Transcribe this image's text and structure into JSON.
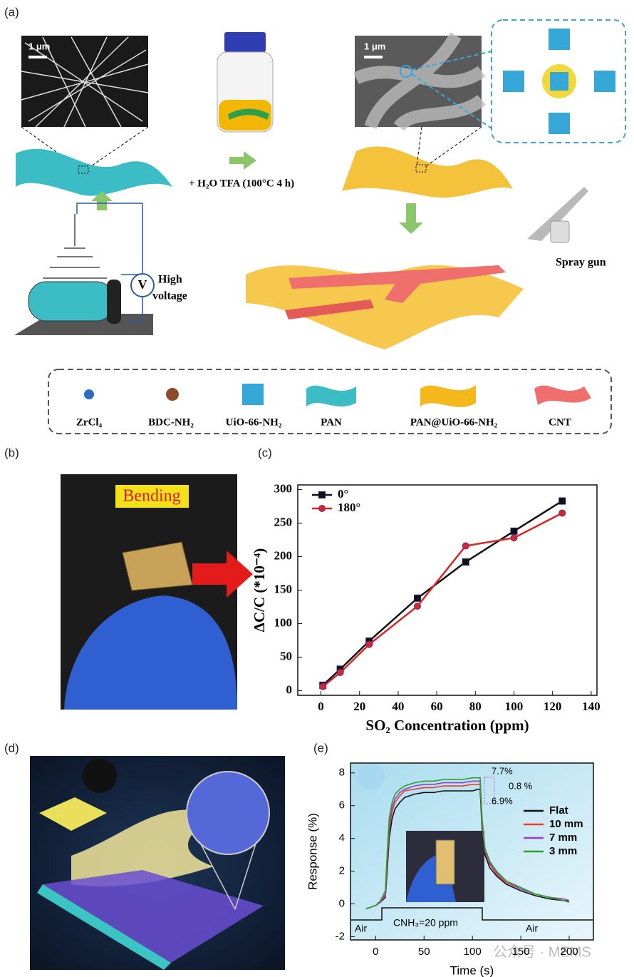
{
  "panel_labels": [
    "(a)",
    "(b)",
    "(c)",
    "(d)",
    "(e)"
  ],
  "panel_a": {
    "scale_bars": [
      "1 μm",
      "1 μm"
    ],
    "reaction": "+ H₂O  TFA (100°C  4 h)",
    "voltmeter": "V",
    "voltage_label": [
      "High",
      "voltage"
    ],
    "spray_label": "Spray gun",
    "legend": [
      "ZrCl₄",
      "BDC-NH₂",
      "UiO-66-NH₂",
      "PAN",
      "PAN@UiO-66-NH₂",
      "CNT"
    ]
  },
  "panel_b": {
    "label": "Bending"
  },
  "chart_data": [
    {
      "type": "line",
      "xlabel": "SO₂ Concentration (ppm)",
      "ylabel": "ΔC/C (*10⁻⁴)",
      "x": [
        1,
        10,
        25,
        50,
        75,
        100,
        125
      ],
      "series": [
        {
          "name": "0°",
          "color": "#111111",
          "marker": "square",
          "values": [
            8,
            32,
            74,
            138,
            192,
            238,
            283
          ]
        },
        {
          "name": "180°",
          "color": "#d62728",
          "marker": "circle",
          "values": [
            6,
            27,
            69,
            126,
            216,
            228,
            265
          ]
        }
      ],
      "xlim": [
        -12,
        143
      ],
      "ylim": [
        -7,
        307
      ],
      "xticks": [
        0,
        20,
        40,
        60,
        80,
        100,
        120,
        140
      ],
      "yticks": [
        0,
        50,
        100,
        150,
        200,
        250,
        300
      ],
      "legend": "upper left"
    },
    {
      "type": "line",
      "xlabel": "Time (s)",
      "ylabel": "Response (%)",
      "x": [
        -10,
        0,
        5,
        10,
        12,
        14,
        17,
        20,
        25,
        30,
        40,
        50,
        60,
        70,
        80,
        90,
        100,
        106,
        108,
        110,
        113,
        118,
        125,
        135,
        150,
        165,
        180,
        195,
        200
      ],
      "series": [
        {
          "name": "Flat",
          "color": "#111111",
          "values": [
            -0.3,
            -0.1,
            0.1,
            0.4,
            2.0,
            4.0,
            5.2,
            5.8,
            6.2,
            6.5,
            6.7,
            6.8,
            6.8,
            6.9,
            6.9,
            6.9,
            6.9,
            7.0,
            7.0,
            4.5,
            3.0,
            2.2,
            1.7,
            1.2,
            0.8,
            0.5,
            0.3,
            0.2,
            0.2
          ]
        },
        {
          "name": "10 mm",
          "color": "#e8412c",
          "values": [
            -0.3,
            -0.1,
            0.1,
            0.5,
            2.4,
            4.5,
            5.6,
            6.2,
            6.6,
            6.9,
            7.0,
            7.1,
            7.1,
            7.2,
            7.2,
            7.2,
            7.3,
            7.3,
            7.3,
            4.8,
            3.2,
            2.4,
            1.8,
            1.3,
            0.9,
            0.6,
            0.4,
            0.2,
            0.1
          ]
        },
        {
          "name": "7 mm",
          "color": "#9b3fc0",
          "values": [
            -0.3,
            -0.1,
            0.1,
            0.6,
            2.8,
            4.8,
            5.9,
            6.4,
            6.8,
            7.0,
            7.2,
            7.3,
            7.3,
            7.4,
            7.4,
            7.4,
            7.5,
            7.5,
            7.5,
            5.0,
            3.3,
            2.5,
            1.9,
            1.4,
            0.9,
            0.6,
            0.4,
            0.3,
            0.2
          ]
        },
        {
          "name": "3 mm",
          "color": "#2ca02c",
          "values": [
            -0.3,
            -0.1,
            0.2,
            0.8,
            3.2,
            5.2,
            6.2,
            6.7,
            7.0,
            7.2,
            7.4,
            7.5,
            7.5,
            7.6,
            7.6,
            7.6,
            7.7,
            7.7,
            7.7,
            5.2,
            3.4,
            2.6,
            2.0,
            1.4,
            1.0,
            0.6,
            0.4,
            0.2,
            0.1
          ]
        }
      ],
      "xlim": [
        -26,
        225
      ],
      "ylim": [
        -2.2,
        8.6
      ],
      "xticks": [
        0,
        50,
        100,
        150,
        200
      ],
      "yticks": [
        -2,
        0,
        2,
        4,
        6,
        8
      ],
      "legend": "center right",
      "annotations": [
        "7.7%",
        "0.8 %",
        "6.9%"
      ],
      "phases": [
        "Air",
        "CNH₃=20 ppm",
        "Air"
      ]
    }
  ],
  "watermark": "公众号 · MEMS"
}
